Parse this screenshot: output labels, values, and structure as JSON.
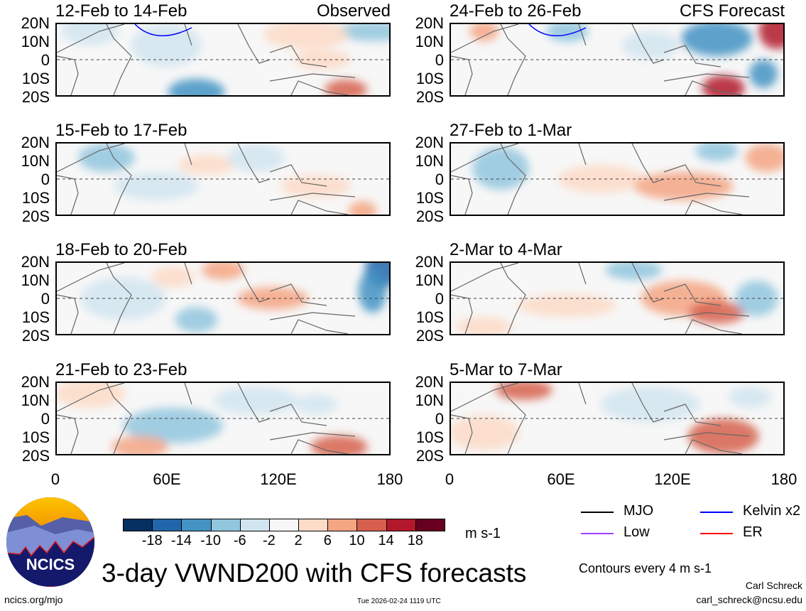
{
  "panels": [
    {
      "title": "12-Feb to 14-Feb",
      "tag": "Observed"
    },
    {
      "title": "15-Feb to 17-Feb",
      "tag": ""
    },
    {
      "title": "18-Feb to 20-Feb",
      "tag": ""
    },
    {
      "title": "21-Feb to 23-Feb",
      "tag": ""
    },
    {
      "title": "24-Feb to 26-Feb",
      "tag": "CFS Forecast"
    },
    {
      "title": "27-Feb to 1-Mar",
      "tag": ""
    },
    {
      "title": "2-Mar to 4-Mar",
      "tag": ""
    },
    {
      "title": "5-Mar to 7-Mar",
      "tag": ""
    }
  ],
  "lat_labels": [
    "20N",
    "10N",
    "0",
    "10S",
    "20S"
  ],
  "lon_labels": [
    "0",
    "60E",
    "120E",
    "180"
  ],
  "colorbar": {
    "colors": [
      "#053061",
      "#2166ac",
      "#4393c3",
      "#92c5de",
      "#d1e5f0",
      "#f7f7f7",
      "#fddbc7",
      "#f4a582",
      "#d6604d",
      "#b2182b",
      "#67001f"
    ],
    "labels": [
      "-18",
      "-14",
      "-10",
      "-6",
      "-2",
      "2",
      "6",
      "10",
      "14",
      "18"
    ],
    "units": "m s-1"
  },
  "legend": [
    {
      "label": "MJO",
      "color": "#000000"
    },
    {
      "label": "Kelvin x2",
      "color": "#0000ff"
    },
    {
      "label": "Low",
      "color": "#a040ff"
    },
    {
      "label": "ER",
      "color": "#ff0000"
    }
  ],
  "contours_note": "Contours every 4 m s-1",
  "title": "3-day VWND200 with CFS forecasts",
  "logo_text": "NCICS",
  "url": "ncics.org/mjo",
  "timestamp": "Tue 2026-02-24 1119 UTC",
  "author": "Carl Schreck",
  "email": "carl_schreck@ncsu.edu"
}
